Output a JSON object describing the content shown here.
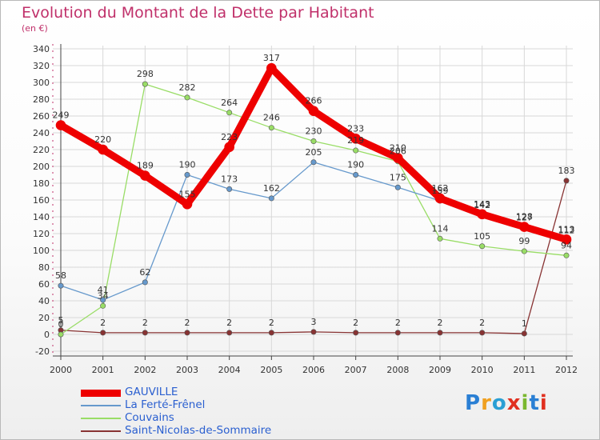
{
  "title": "Evolution du Montant de la Dette par Habitant",
  "subtitle": "(en €)",
  "logo": {
    "text": "Proxiti",
    "colors": [
      "#2a7fd4",
      "#f0a020",
      "#2a9fd4",
      "#e03020",
      "#7ab830",
      "#2a7fd4",
      "#e03020"
    ]
  },
  "colors": {
    "title": "#c0306a",
    "legend_text": "#2a5fd0",
    "grid": "#d8d8d8",
    "axis": "#444444"
  },
  "chart_data": {
    "type": "line",
    "title": "Evolution du Montant de la Dette par Habitant",
    "subtitle": "(en €)",
    "x": [
      "2000",
      "2001",
      "2002",
      "2003",
      "2004",
      "2005",
      "2006",
      "2007",
      "2008",
      "2009",
      "2010",
      "2011",
      "2012"
    ],
    "y_ticks": [
      -20,
      0,
      20,
      40,
      60,
      80,
      100,
      120,
      140,
      160,
      180,
      200,
      220,
      240,
      260,
      280,
      300,
      320,
      340
    ],
    "ylim": [
      -20,
      340
    ],
    "grid": true,
    "legend_position": "bottom-left",
    "series": [
      {
        "name": "GAUVILLE",
        "color": "#ee0000",
        "values": [
          249,
          220,
          189,
          155,
          223,
          317,
          266,
          233,
          210,
          162,
          143,
          128,
          113
        ]
      },
      {
        "name": "La Ferté-Frênel",
        "color": "#6699cc",
        "values": [
          58,
          41,
          62,
          190,
          173,
          162,
          205,
          190,
          175,
          159,
          142,
          127,
          112
        ]
      },
      {
        "name": "Couvains",
        "color": "#99dd66",
        "values": [
          0,
          34,
          298,
          282,
          264,
          246,
          230,
          219,
          206,
          114,
          105,
          99,
          94
        ]
      },
      {
        "name": "Saint-Nicolas-de-Sommaire",
        "color": "#883333",
        "values": [
          5,
          2,
          2,
          2,
          2,
          2,
          3,
          2,
          2,
          2,
          2,
          1,
          183
        ]
      }
    ]
  }
}
